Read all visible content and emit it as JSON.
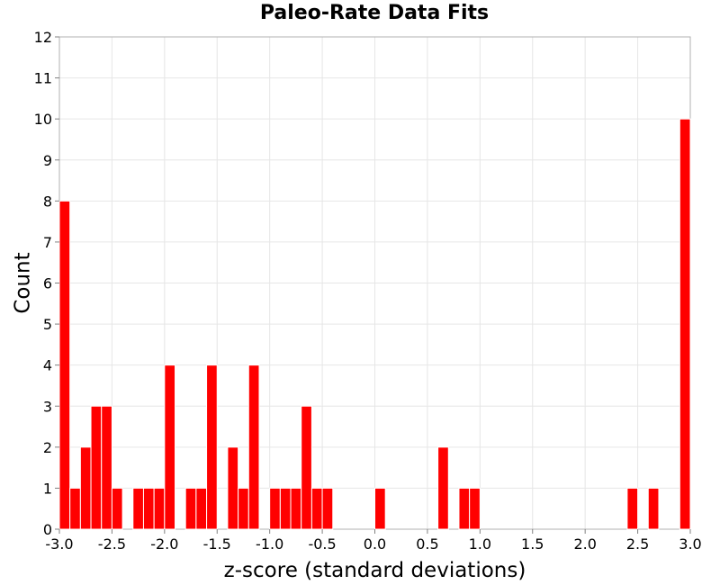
{
  "chart_data": {
    "type": "bar",
    "title": "Paleo-Rate Data Fits",
    "xlabel": "z-score (standard deviations)",
    "ylabel": "Count",
    "xlim": [
      -3.0,
      3.0
    ],
    "ylim": [
      0,
      12
    ],
    "bin_width": 0.1,
    "grid": true,
    "bar_color": "#ff0000",
    "x_ticks": [
      "-3.0",
      "-2.5",
      "-2.0",
      "-1.5",
      "-1.0",
      "-0.5",
      "0.0",
      "0.5",
      "1.0",
      "1.5",
      "2.0",
      "2.5",
      "3.0"
    ],
    "y_ticks": [
      "0",
      "1",
      "2",
      "3",
      "4",
      "5",
      "6",
      "7",
      "8",
      "9",
      "10",
      "11",
      "12"
    ],
    "bins": [
      {
        "x": -2.95,
        "count": 8
      },
      {
        "x": -2.85,
        "count": 1
      },
      {
        "x": -2.75,
        "count": 2
      },
      {
        "x": -2.65,
        "count": 3
      },
      {
        "x": -2.55,
        "count": 3
      },
      {
        "x": -2.45,
        "count": 1
      },
      {
        "x": -2.25,
        "count": 1
      },
      {
        "x": -2.15,
        "count": 1
      },
      {
        "x": -2.05,
        "count": 1
      },
      {
        "x": -1.95,
        "count": 4
      },
      {
        "x": -1.75,
        "count": 1
      },
      {
        "x": -1.65,
        "count": 1
      },
      {
        "x": -1.55,
        "count": 4
      },
      {
        "x": -1.35,
        "count": 2
      },
      {
        "x": -1.25,
        "count": 1
      },
      {
        "x": -1.15,
        "count": 4
      },
      {
        "x": -0.95,
        "count": 1
      },
      {
        "x": -0.85,
        "count": 1
      },
      {
        "x": -0.75,
        "count": 1
      },
      {
        "x": -0.65,
        "count": 3
      },
      {
        "x": -0.55,
        "count": 1
      },
      {
        "x": -0.45,
        "count": 1
      },
      {
        "x": 0.05,
        "count": 1
      },
      {
        "x": 0.65,
        "count": 2
      },
      {
        "x": 0.85,
        "count": 1
      },
      {
        "x": 0.95,
        "count": 1
      },
      {
        "x": 2.45,
        "count": 1
      },
      {
        "x": 2.65,
        "count": 1
      },
      {
        "x": 2.95,
        "count": 10
      }
    ]
  }
}
